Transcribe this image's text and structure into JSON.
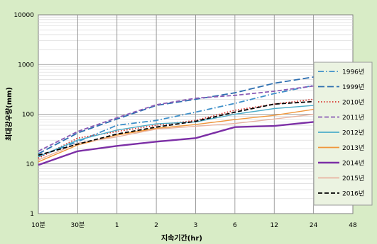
{
  "chart_data": {
    "type": "line",
    "xlabel": "지속기간(hr)",
    "ylabel": "최대강우량(mm)",
    "yscale": "log",
    "ylim": [
      1,
      10000
    ],
    "y_ticks": [
      "1",
      "10",
      "100",
      "1000",
      "10000"
    ],
    "categories": [
      "10분",
      "30분",
      "1",
      "2",
      "3",
      "6",
      "12",
      "24",
      "48"
    ],
    "grid": true,
    "legend_position": "right",
    "series": [
      {
        "name": "1996년",
        "color": "#3d8fc9",
        "dash": "dashdot",
        "values": [
          14,
          28,
          60,
          75,
          110,
          165,
          260,
          380,
          600
        ]
      },
      {
        "name": "1999년",
        "color": "#2e6fb0",
        "dash": "longdash",
        "values": [
          16,
          42,
          80,
          150,
          200,
          270,
          420,
          560,
          800
        ]
      },
      {
        "name": "2010년",
        "color": "#d8312a",
        "dash": "dotted",
        "values": [
          13,
          33,
          45,
          60,
          75,
          120,
          160,
          200,
          250
        ]
      },
      {
        "name": "2011년",
        "color": "#8b5bb5",
        "dash": "dashed",
        "values": [
          18,
          45,
          85,
          155,
          210,
          240,
          290,
          370,
          620
        ]
      },
      {
        "name": "2012년",
        "color": "#4cadc9",
        "dash": "solid",
        "values": [
          14,
          30,
          48,
          64,
          70,
          100,
          130,
          150,
          165
        ]
      },
      {
        "name": "2013년",
        "color": "#f0963a",
        "dash": "solid",
        "values": [
          11,
          24,
          38,
          52,
          62,
          78,
          95,
          125,
          170
        ]
      },
      {
        "name": "2014년",
        "color": "#7c2fa6",
        "dash": "solid",
        "values": [
          9.5,
          18,
          23,
          28,
          33,
          55,
          58,
          70,
          85
        ]
      },
      {
        "name": "2015년",
        "color": "#e8b3a0",
        "dash": "solid",
        "values": [
          12,
          26,
          35,
          50,
          57,
          65,
          80,
          100,
          150
        ]
      },
      {
        "name": "2016년",
        "color": "#000000",
        "dash": "dashed",
        "values": [
          15,
          25,
          40,
          55,
          72,
          110,
          160,
          180,
          180
        ]
      }
    ]
  }
}
